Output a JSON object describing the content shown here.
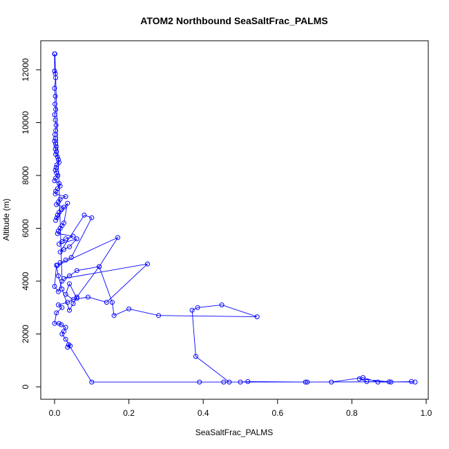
{
  "chart_data": {
    "type": "line",
    "title": "ATOM2 Northbound SeaSaltFrac_PALMS",
    "xlabel": "SeaSaltFrac_PALMS",
    "ylabel": "Altitude (m)",
    "xlim": [
      0,
      1
    ],
    "ylim": [
      0,
      12600
    ],
    "xticks": [
      "0.0",
      "0.2",
      "0.4",
      "0.6",
      "0.8",
      "1.0"
    ],
    "yticks": [
      "0",
      "2000",
      "4000",
      "6000",
      "8000",
      "10000",
      "12000"
    ],
    "grid": false,
    "legend": "none",
    "color": "#0000ff",
    "series": [
      {
        "x": [
          0.0,
          0.0,
          0.002,
          0.003,
          0.0,
          0.002,
          0.001,
          0.003,
          0.0,
          0.002,
          0.004,
          0.003,
          0.001,
          0.002,
          0.0,
          0.003,
          0.004,
          0.002,
          0.005,
          0.003,
          0.008,
          0.01,
          0.012,
          0.006,
          0.004,
          0.002,
          0.005,
          0.009,
          0.003,
          0.0,
          0.012,
          0.015,
          0.008,
          0.003,
          0.002,
          0.03,
          0.015,
          0.01,
          0.005,
          0.025,
          0.018,
          0.012,
          0.008,
          0.006,
          0.003,
          0.035,
          0.025,
          0.02,
          0.015,
          0.01,
          0.008,
          0.05,
          0.03,
          0.02,
          0.012,
          0.06,
          0.04,
          0.025,
          0.015,
          0.08,
          0.1,
          0.045,
          0.03,
          0.015,
          0.008,
          0.17,
          0.12,
          0.06,
          0.04,
          0.025,
          0.25,
          0.14,
          0.09,
          0.05,
          0.03,
          0.04,
          0.06,
          0.035,
          0.01,
          0.02,
          0.005,
          0.0,
          0.012,
          0.018,
          0.03,
          0.025,
          0.02,
          0.03,
          0.042,
          0.035,
          0.038,
          0.1,
          0.39,
          0.455,
          0.5,
          0.52,
          0.68,
          0.745,
          0.83,
          0.87,
          0.905,
          0.96,
          0.97,
          0.84,
          0.82,
          0.9,
          0.675,
          0.47,
          0.38,
          0.37,
          0.385,
          0.45,
          0.545,
          0.28,
          0.2,
          0.16,
          0.155,
          0.12,
          0.06,
          0.05,
          0.04,
          0.02,
          0.01,
          0.005,
          0.0,
          0.01,
          0.02,
          0.001
        ],
        "y": [
          12600,
          11950,
          11850,
          11700,
          11300,
          11000,
          10700,
          10500,
          10300,
          10100,
          9900,
          9700,
          9550,
          9400,
          9300,
          9200,
          9100,
          9000,
          8900,
          8800,
          8700,
          8600,
          8500,
          8400,
          8300,
          8200,
          8100,
          8000,
          7900,
          7800,
          7700,
          7600,
          7500,
          7400,
          7300,
          7200,
          7100,
          7000,
          6900,
          6800,
          6700,
          6600,
          6500,
          6400,
          6300,
          6950,
          6200,
          6100,
          6000,
          5900,
          5800,
          5700,
          5600,
          5500,
          5400,
          5600,
          5300,
          5200,
          5100,
          6500,
          6400,
          4900,
          4800,
          4700,
          4600,
          5650,
          4550,
          4400,
          4200,
          4100,
          4650,
          3200,
          3400,
          3300,
          3500,
          3900,
          3350,
          3200,
          3100,
          3000,
          2800,
          2400,
          2400,
          2350,
          2250,
          2100,
          2000,
          1800,
          1550,
          1500,
          1600,
          180,
          180,
          180,
          180,
          200,
          180,
          180,
          350,
          180,
          180,
          200,
          180,
          200,
          300,
          190,
          180,
          180,
          1150,
          2900,
          3000,
          3100,
          2650,
          2700,
          2950,
          2700,
          3200,
          4550,
          3400,
          3150,
          2900,
          3700,
          4200,
          4600,
          3800,
          3600,
          4000,
          12600
        ]
      }
    ]
  }
}
